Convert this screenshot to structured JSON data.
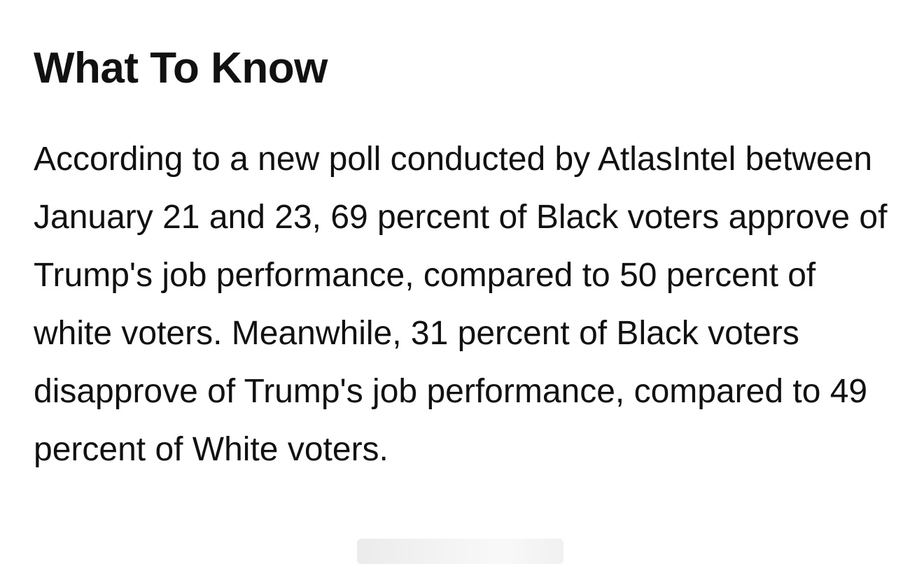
{
  "article": {
    "heading": "What To Know",
    "paragraph": "According to a new poll conducted by AtlasIntel between January 21 and 23, 69 percent of Black voters approve of Trump's job performance, compared to 50 percent of white voters. Meanwhile, 31 percent of Black voters disapprove of Trump's job performance, compared to 49 percent of White voters."
  }
}
